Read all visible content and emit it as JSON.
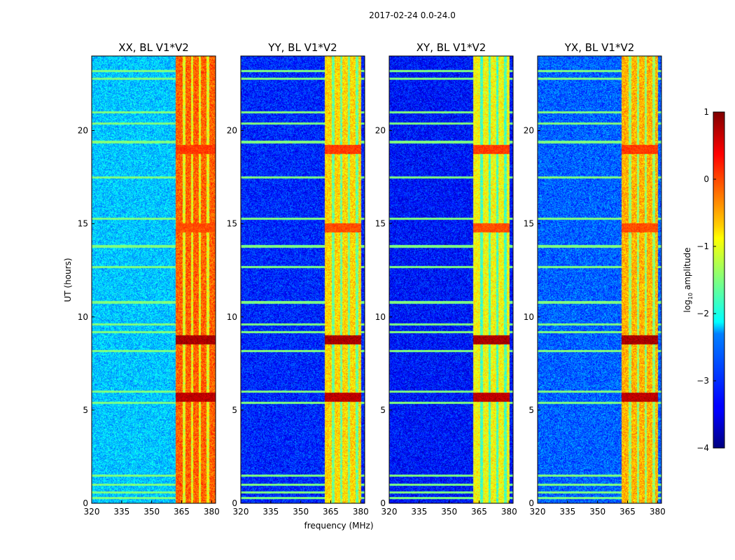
{
  "chart_data": {
    "type": "heatmap",
    "suptitle": "2017-02-24 0.0-24.0",
    "xlabel": "frequency (MHz)",
    "ylabel": "UT (hours)",
    "xlim": [
      320,
      382
    ],
    "ylim": [
      0,
      24
    ],
    "x_ticks": [
      320,
      335,
      350,
      365,
      380
    ],
    "y_ticks": [
      0,
      5,
      10,
      15,
      20
    ],
    "panels": [
      {
        "title": "XX, BL V1*V2",
        "base": -2.4,
        "band_level": -0.1,
        "band_lo": 362,
        "band_hi": 382
      },
      {
        "title": "YY, BL V1*V2",
        "base": -3.2,
        "band_level": -0.7,
        "band_lo": 362,
        "band_hi": 380
      },
      {
        "title": "XY, BL V1*V2",
        "base": -3.3,
        "band_level": -0.9,
        "band_lo": 362,
        "band_hi": 380
      },
      {
        "title": "YX, BL V1*V2",
        "base": -2.9,
        "band_level": -0.5,
        "band_lo": 362,
        "band_hi": 380
      }
    ],
    "strong_rows_ut": [
      {
        "ut": 5.7,
        "level": 0.7
      },
      {
        "ut": 8.8,
        "level": 0.8
      },
      {
        "ut": 19.0,
        "level": 0.1
      },
      {
        "ut": 14.8,
        "level": 0.0
      }
    ],
    "rfi_channels_mhz": [
      366,
      370,
      374,
      378
    ],
    "rfi_rows_ut": [
      0.3,
      0.6,
      1.0,
      1.5,
      5.4,
      6.0,
      8.2,
      9.2,
      9.6,
      10.8,
      12.7,
      13.8,
      15.3,
      17.5,
      19.4,
      20.4,
      21.0,
      22.8,
      23.2
    ],
    "colorbar": {
      "label": "log10 amplitude",
      "label_main": "log",
      "label_sub": "10",
      "label_rest": " amplitude",
      "range": [
        -4,
        1
      ],
      "ticks": [
        "1",
        "0",
        "−1",
        "−2",
        "−3",
        "−4"
      ],
      "colormap": "jet"
    }
  }
}
